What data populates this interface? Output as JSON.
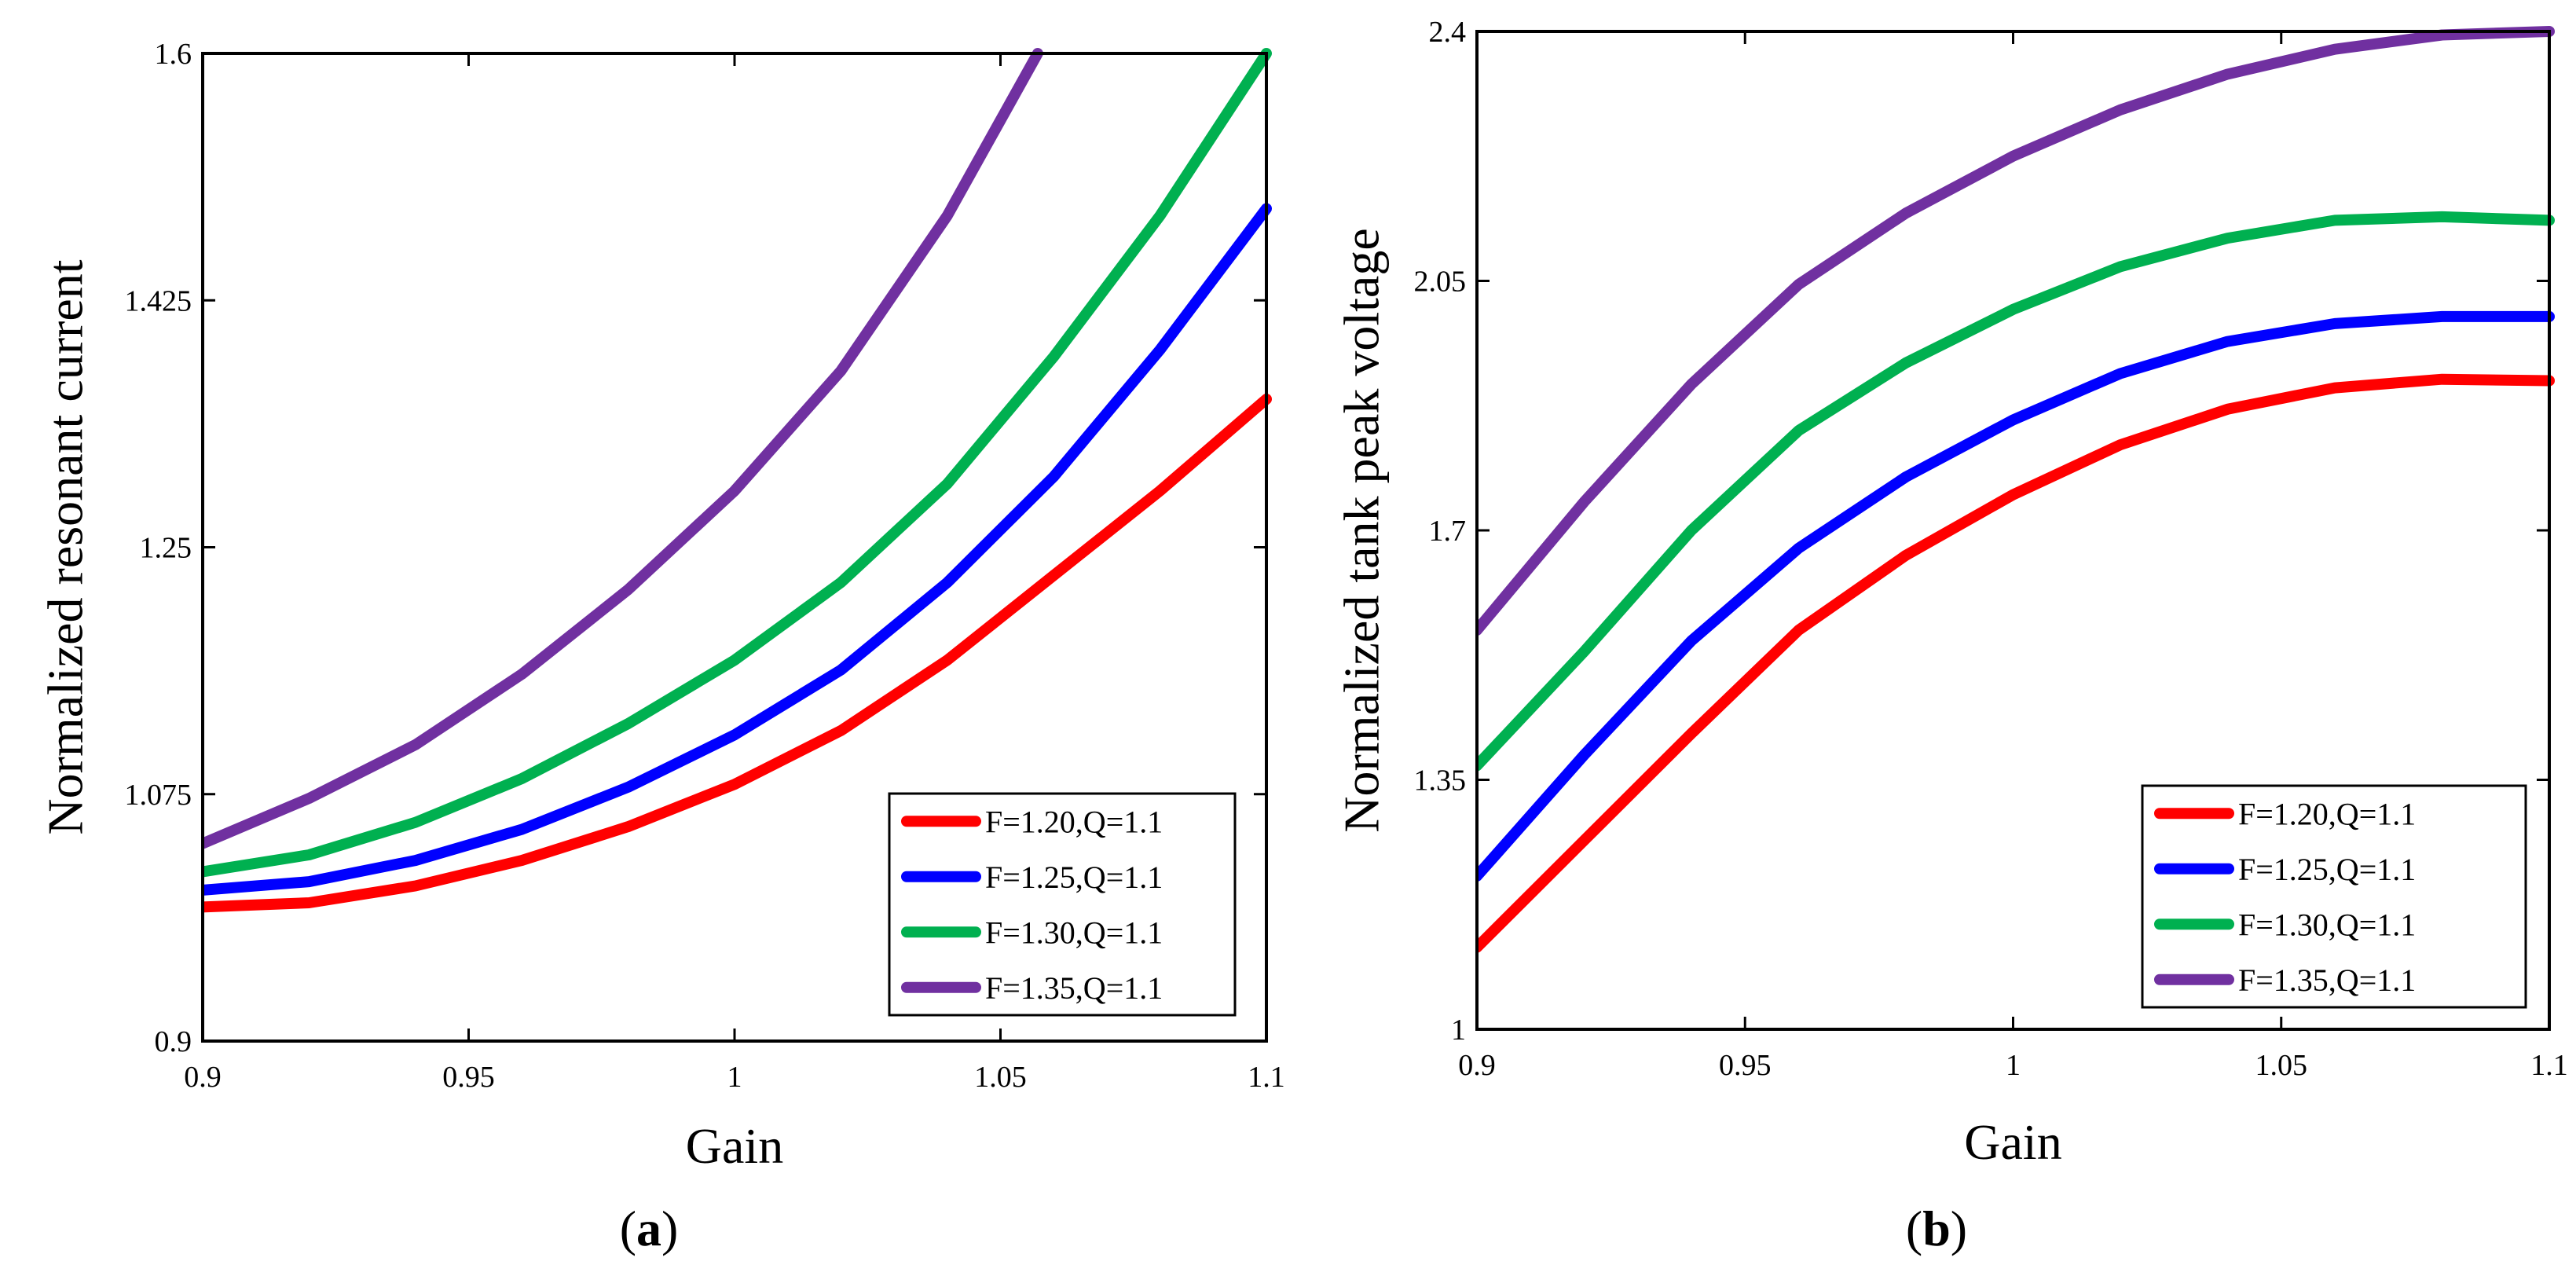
{
  "chart_data": [
    {
      "type": "line",
      "panel": "a",
      "panel_label": "a",
      "xlabel": "Gain",
      "ylabel": "Normalized resonant current",
      "xlim": [
        0.9,
        1.1
      ],
      "ylim": [
        0.9,
        1.6
      ],
      "xticks": [
        0.9,
        0.95,
        1,
        1.05,
        1.1
      ],
      "xtick_labels": [
        "0.9",
        "0.95",
        "1",
        "1.05",
        "1.1"
      ],
      "yticks": [
        0.9,
        1.075,
        1.25,
        1.425,
        1.6
      ],
      "ytick_labels": [
        "0.9",
        "1.075",
        "1.25",
        "1.425",
        "1.6"
      ],
      "legend_position": "bottom-right",
      "x": [
        0.9,
        0.92,
        0.94,
        0.96,
        0.98,
        1.0,
        1.02,
        1.04,
        1.06,
        1.08,
        1.1
      ],
      "series": [
        {
          "name": "F=1.20,Q=1.1",
          "color": "#ff0000",
          "x": [
            0.9,
            0.92,
            0.94,
            0.96,
            0.98,
            1.0,
            1.02,
            1.04,
            1.06,
            1.08,
            1.1
          ],
          "values": [
            0.995,
            0.998,
            1.01,
            1.028,
            1.052,
            1.082,
            1.12,
            1.17,
            1.23,
            1.29,
            1.355
          ]
        },
        {
          "name": "F=1.25,Q=1.1",
          "color": "#0000ff",
          "x": [
            0.9,
            0.92,
            0.94,
            0.96,
            0.98,
            1.0,
            1.02,
            1.04,
            1.06,
            1.08,
            1.1
          ],
          "values": [
            1.007,
            1.013,
            1.028,
            1.05,
            1.08,
            1.117,
            1.163,
            1.225,
            1.3,
            1.39,
            1.49
          ]
        },
        {
          "name": "F=1.30,Q=1.1",
          "color": "#00b050",
          "x": [
            0.9,
            0.92,
            0.94,
            0.96,
            0.98,
            1.0,
            1.02,
            1.04,
            1.06,
            1.08,
            1.1
          ],
          "values": [
            1.02,
            1.032,
            1.055,
            1.086,
            1.125,
            1.17,
            1.225,
            1.295,
            1.385,
            1.485,
            1.6
          ]
        },
        {
          "name": "F=1.35,Q=1.1",
          "color": "#7030a0",
          "x": [
            0.9,
            0.92,
            0.94,
            0.96,
            0.98,
            1.0,
            1.02,
            1.04,
            1.057
          ],
          "values": [
            1.04,
            1.072,
            1.11,
            1.16,
            1.22,
            1.29,
            1.375,
            1.485,
            1.6
          ]
        }
      ]
    },
    {
      "type": "line",
      "panel": "b",
      "panel_label": "b",
      "xlabel": "Gain",
      "ylabel": "Normalized tank peak voltage",
      "xlim": [
        0.9,
        1.1
      ],
      "ylim": [
        1.0,
        2.4
      ],
      "xticks": [
        0.9,
        0.95,
        1,
        1.05,
        1.1
      ],
      "xtick_labels": [
        "0.9",
        "0.95",
        "1",
        "1.05",
        "1.1"
      ],
      "yticks": [
        1.0,
        1.35,
        1.7,
        2.05,
        2.4
      ],
      "ytick_labels": [
        "1",
        "1.35",
        "1.7",
        "2.05",
        "2.4"
      ],
      "legend_position": "bottom-right",
      "series": [
        {
          "name": "F=1.20,Q=1.1",
          "color": "#ff0000",
          "x": [
            0.9,
            0.92,
            0.94,
            0.96,
            0.98,
            1.0,
            1.02,
            1.04,
            1.06,
            1.08,
            1.1
          ],
          "values": [
            1.115,
            1.265,
            1.415,
            1.56,
            1.665,
            1.75,
            1.82,
            1.87,
            1.9,
            1.912,
            1.91
          ]
        },
        {
          "name": "F=1.25,Q=1.1",
          "color": "#0000ff",
          "x": [
            0.9,
            0.92,
            0.94,
            0.96,
            0.98,
            1.0,
            1.02,
            1.04,
            1.06,
            1.08,
            1.1
          ],
          "values": [
            1.215,
            1.385,
            1.545,
            1.675,
            1.775,
            1.855,
            1.92,
            1.965,
            1.99,
            2.0,
            2.0
          ]
        },
        {
          "name": "F=1.30,Q=1.1",
          "color": "#00b050",
          "x": [
            0.9,
            0.92,
            0.94,
            0.96,
            0.98,
            1.0,
            1.02,
            1.04,
            1.06,
            1.08,
            1.1
          ],
          "values": [
            1.37,
            1.53,
            1.7,
            1.84,
            1.935,
            2.01,
            2.07,
            2.11,
            2.135,
            2.14,
            2.135
          ]
        },
        {
          "name": "F=1.35,Q=1.1",
          "color": "#7030a0",
          "x": [
            0.9,
            0.92,
            0.94,
            0.96,
            0.98,
            1.0,
            1.02,
            1.04,
            1.06,
            1.08,
            1.1
          ],
          "values": [
            1.56,
            1.74,
            1.905,
            2.045,
            2.145,
            2.225,
            2.29,
            2.34,
            2.375,
            2.395,
            2.4
          ]
        }
      ]
    }
  ]
}
